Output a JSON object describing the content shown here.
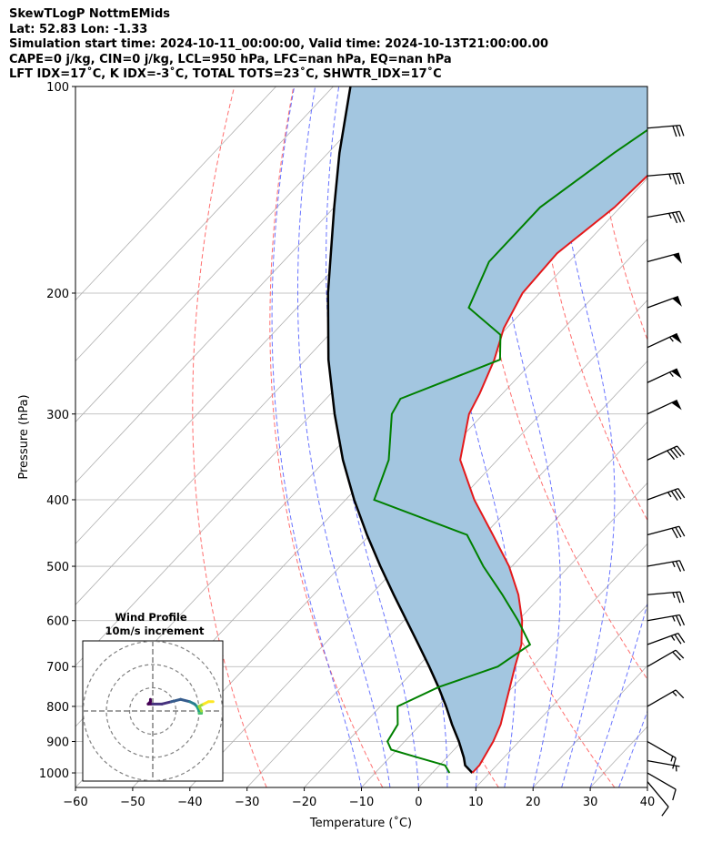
{
  "header": {
    "line1": "SkewTLogP NottmEMids",
    "line2": "Lat: 52.83   Lon: -1.33",
    "line3": "Simulation start time: 2024-10-11_00:00:00, Valid time: 2024-10-13T21:00:00.00",
    "line4": "CAPE=0 j/kg, CIN=0 j/kg, LCL=950 hPa, LFC=nan hPa, EQ=nan hPa",
    "line5": "LFT IDX=17˚C, K IDX=-3˚C, TOTAL TOTS=23˚C, SHWTR_IDX=17˚C"
  },
  "chart_data": {
    "type": "skewt",
    "xlabel": "Temperature (˚C)",
    "ylabel": "Pressure (hPa)",
    "xlim": [
      -60,
      40
    ],
    "ylim": [
      1050,
      100
    ],
    "x_ticks": [
      -60,
      -50,
      -40,
      -30,
      -20,
      -10,
      0,
      10,
      20,
      30,
      40
    ],
    "x_tick_labels": [
      "−60",
      "−50",
      "−40",
      "−30",
      "−20",
      "−10",
      "0",
      "10",
      "20",
      "30",
      "40"
    ],
    "p_ticks": [
      100,
      200,
      300,
      400,
      500,
      600,
      700,
      800,
      900,
      1000
    ],
    "p_tick_labels": [
      "100",
      "200",
      "300",
      "400",
      "500",
      "600",
      "700",
      "800",
      "900",
      "1000"
    ],
    "temperature": {
      "color": "#e41a1c",
      "p": [
        1000,
        975,
        950,
        925,
        900,
        850,
        800,
        750,
        700,
        650,
        600,
        550,
        500,
        450,
        400,
        350,
        300,
        280,
        250,
        225,
        200,
        175,
        150,
        125,
        100
      ],
      "t": [
        7.0,
        7.0,
        6.5,
        6.0,
        5.5,
        4.0,
        1.8,
        -0.5,
        -3.0,
        -5.5,
        -9.3,
        -14.2,
        -20.5,
        -28.5,
        -37.5,
        -46.5,
        -52.5,
        -54.0,
        -57.0,
        -60.5,
        -63.0,
        -63.5,
        -61.0,
        -60.0,
        -58.5
      ]
    },
    "dewpoint": {
      "color": "#008000",
      "p": [
        1000,
        975,
        950,
        925,
        900,
        850,
        800,
        750,
        700,
        650,
        600,
        550,
        500,
        450,
        400,
        350,
        300,
        285,
        250,
        230,
        210,
        180,
        150,
        125,
        100
      ],
      "td": [
        3.0,
        1.0,
        -5.0,
        -11.0,
        -13.0,
        -14.0,
        -17.0,
        -13.0,
        -6.0,
        -4.0,
        -10.0,
        -17.0,
        -25.0,
        -33.0,
        -55.0,
        -59.0,
        -66.0,
        -67.0,
        -56.0,
        -60.0,
        -70.0,
        -74.0,
        -74.0,
        -70.0,
        -64.0
      ]
    },
    "parcel": {
      "color": "#000000",
      "p": [
        1000,
        975,
        950,
        900,
        850,
        800,
        750,
        700,
        650,
        600,
        550,
        500,
        450,
        400,
        350,
        300,
        250,
        200,
        150,
        125,
        100
      ],
      "t": [
        7.0,
        4.5,
        3.0,
        -0.5,
        -4.5,
        -8.5,
        -13.0,
        -18.0,
        -23.5,
        -29.5,
        -36.0,
        -43.0,
        -50.5,
        -58.5,
        -67.0,
        -76.0,
        -86.0,
        -97.0,
        -110.0,
        -118.0,
        -127.0
      ]
    },
    "dry_adiabats_theta_C": [
      -30,
      -10,
      10,
      30,
      50,
      70,
      90,
      110,
      130,
      150,
      170
    ],
    "moist_adiabats_start_C": [
      -10,
      -5,
      0,
      5,
      10,
      15,
      20,
      25,
      30,
      35,
      40
    ],
    "mixing_ratio_lines": [],
    "wind_barbs": [
      {
        "p": 1030,
        "speed_kt": 10,
        "dir_deg": 320
      },
      {
        "p": 1000,
        "speed_kt": 10,
        "dir_deg": 300
      },
      {
        "p": 960,
        "speed_kt": 5,
        "dir_deg": 280
      },
      {
        "p": 900,
        "speed_kt": 15,
        "dir_deg": 300
      },
      {
        "p": 800,
        "speed_kt": 15,
        "dir_deg": 240
      },
      {
        "p": 700,
        "speed_kt": 20,
        "dir_deg": 240
      },
      {
        "p": 650,
        "speed_kt": 25,
        "dir_deg": 250
      },
      {
        "p": 600,
        "speed_kt": 25,
        "dir_deg": 260
      },
      {
        "p": 550,
        "speed_kt": 25,
        "dir_deg": 265
      },
      {
        "p": 500,
        "speed_kt": 25,
        "dir_deg": 260
      },
      {
        "p": 450,
        "speed_kt": 30,
        "dir_deg": 255
      },
      {
        "p": 400,
        "speed_kt": 35,
        "dir_deg": 250
      },
      {
        "p": 350,
        "speed_kt": 40,
        "dir_deg": 245
      },
      {
        "p": 300,
        "speed_kt": 50,
        "dir_deg": 245
      },
      {
        "p": 270,
        "speed_kt": 55,
        "dir_deg": 245
      },
      {
        "p": 240,
        "speed_kt": 55,
        "dir_deg": 245
      },
      {
        "p": 210,
        "speed_kt": 50,
        "dir_deg": 250
      },
      {
        "p": 180,
        "speed_kt": 50,
        "dir_deg": 255
      },
      {
        "p": 155,
        "speed_kt": 35,
        "dir_deg": 260
      },
      {
        "p": 135,
        "speed_kt": 35,
        "dir_deg": 265
      },
      {
        "p": 115,
        "speed_kt": 30,
        "dir_deg": 265
      }
    ],
    "inset": {
      "title": "Wind Profile",
      "subtitle": "10m/s increment",
      "rings_ms": [
        10,
        20,
        30
      ],
      "hodograph_uv_ms": [
        [
          -1,
          5
        ],
        [
          -1,
          4
        ],
        [
          -2,
          3
        ],
        [
          0,
          3
        ],
        [
          4,
          3
        ],
        [
          8,
          4
        ],
        [
          12,
          5
        ],
        [
          16,
          4
        ],
        [
          18,
          3
        ],
        [
          19,
          2
        ],
        [
          20,
          0
        ],
        [
          20,
          -1
        ],
        [
          21,
          -1
        ],
        [
          21,
          0
        ],
        [
          20,
          2
        ],
        [
          22,
          3
        ],
        [
          24,
          4
        ],
        [
          26,
          4
        ]
      ]
    },
    "fill_color": "#a3c6e0"
  }
}
